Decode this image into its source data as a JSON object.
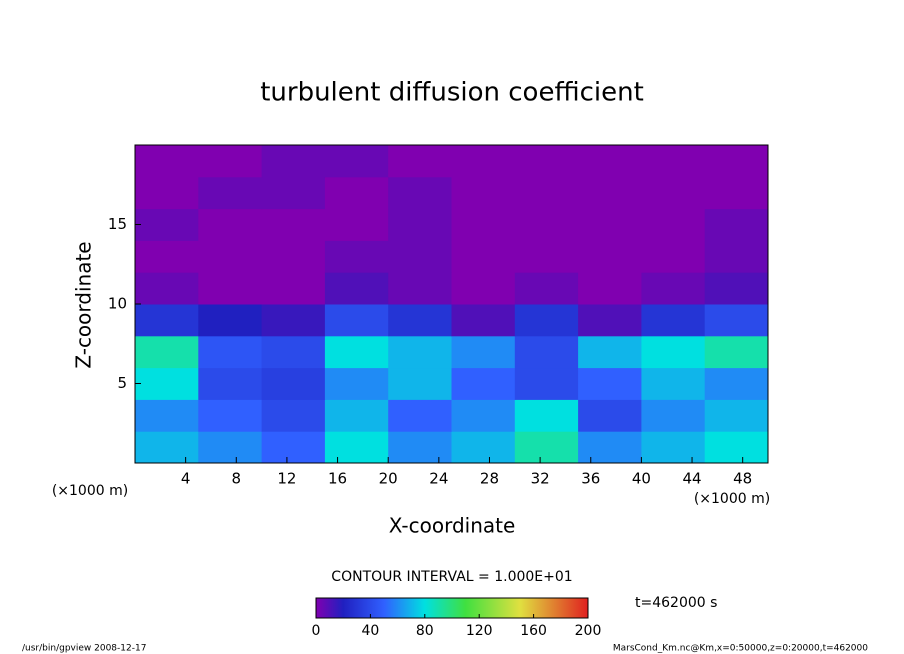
{
  "chart_data": {
    "type": "heatmap",
    "title": "turbulent diffusion coefficient",
    "x_label": "X-coordinate",
    "y_label": "Z-coordinate",
    "x_unit": "(×1000 m)",
    "y_unit": "(×1000 m)",
    "xlim": [
      0,
      50
    ],
    "ylim": [
      0,
      20
    ],
    "xticks": [
      4,
      8,
      12,
      16,
      20,
      24,
      28,
      32,
      36,
      40,
      44,
      48
    ],
    "yticks": [
      5,
      10,
      15
    ],
    "xbins": [
      0,
      5,
      10,
      15,
      20,
      25,
      30,
      35,
      40,
      45,
      50
    ],
    "ybins": [
      0,
      2,
      4,
      6,
      8,
      10,
      12,
      14,
      16,
      18,
      20
    ],
    "z": [
      [
        70,
        60,
        50,
        80,
        60,
        70,
        90,
        60,
        70,
        80
      ],
      [
        60,
        50,
        40,
        70,
        50,
        60,
        80,
        40,
        60,
        70
      ],
      [
        80,
        40,
        35,
        60,
        70,
        50,
        40,
        50,
        70,
        60
      ],
      [
        90,
        45,
        40,
        80,
        70,
        60,
        40,
        70,
        80,
        90
      ],
      [
        30,
        20,
        15,
        40,
        30,
        10,
        30,
        10,
        30,
        40
      ],
      [
        5,
        0,
        0,
        10,
        5,
        0,
        5,
        0,
        5,
        10
      ],
      [
        0,
        0,
        0,
        5,
        5,
        0,
        0,
        0,
        0,
        5
      ],
      [
        5,
        0,
        0,
        0,
        5,
        0,
        0,
        0,
        0,
        5
      ],
      [
        0,
        5,
        5,
        0,
        5,
        0,
        0,
        0,
        0,
        0
      ],
      [
        0,
        0,
        5,
        5,
        0,
        0,
        0,
        0,
        0,
        0
      ]
    ],
    "colorscale": [
      {
        "value": 0,
        "color": "#8000b0"
      },
      {
        "value": 20,
        "color": "#2020c0"
      },
      {
        "value": 50,
        "color": "#3060ff"
      },
      {
        "value": 80,
        "color": "#00e0e0"
      },
      {
        "value": 110,
        "color": "#40e040"
      },
      {
        "value": 150,
        "color": "#e0e040"
      },
      {
        "value": 200,
        "color": "#e02020"
      }
    ],
    "clim": [
      0,
      200
    ],
    "cbticks": [
      0,
      40,
      80,
      120,
      160,
      200
    ],
    "contour_label": "CONTOUR INTERVAL = 1.000E+01",
    "time_label": "t=462000 s",
    "footer_left": "/usr/bin/gpview  2008-12-17",
    "footer_right": "MarsCond_Km.nc@Km,x=0:50000,z=0:20000,t=462000"
  }
}
